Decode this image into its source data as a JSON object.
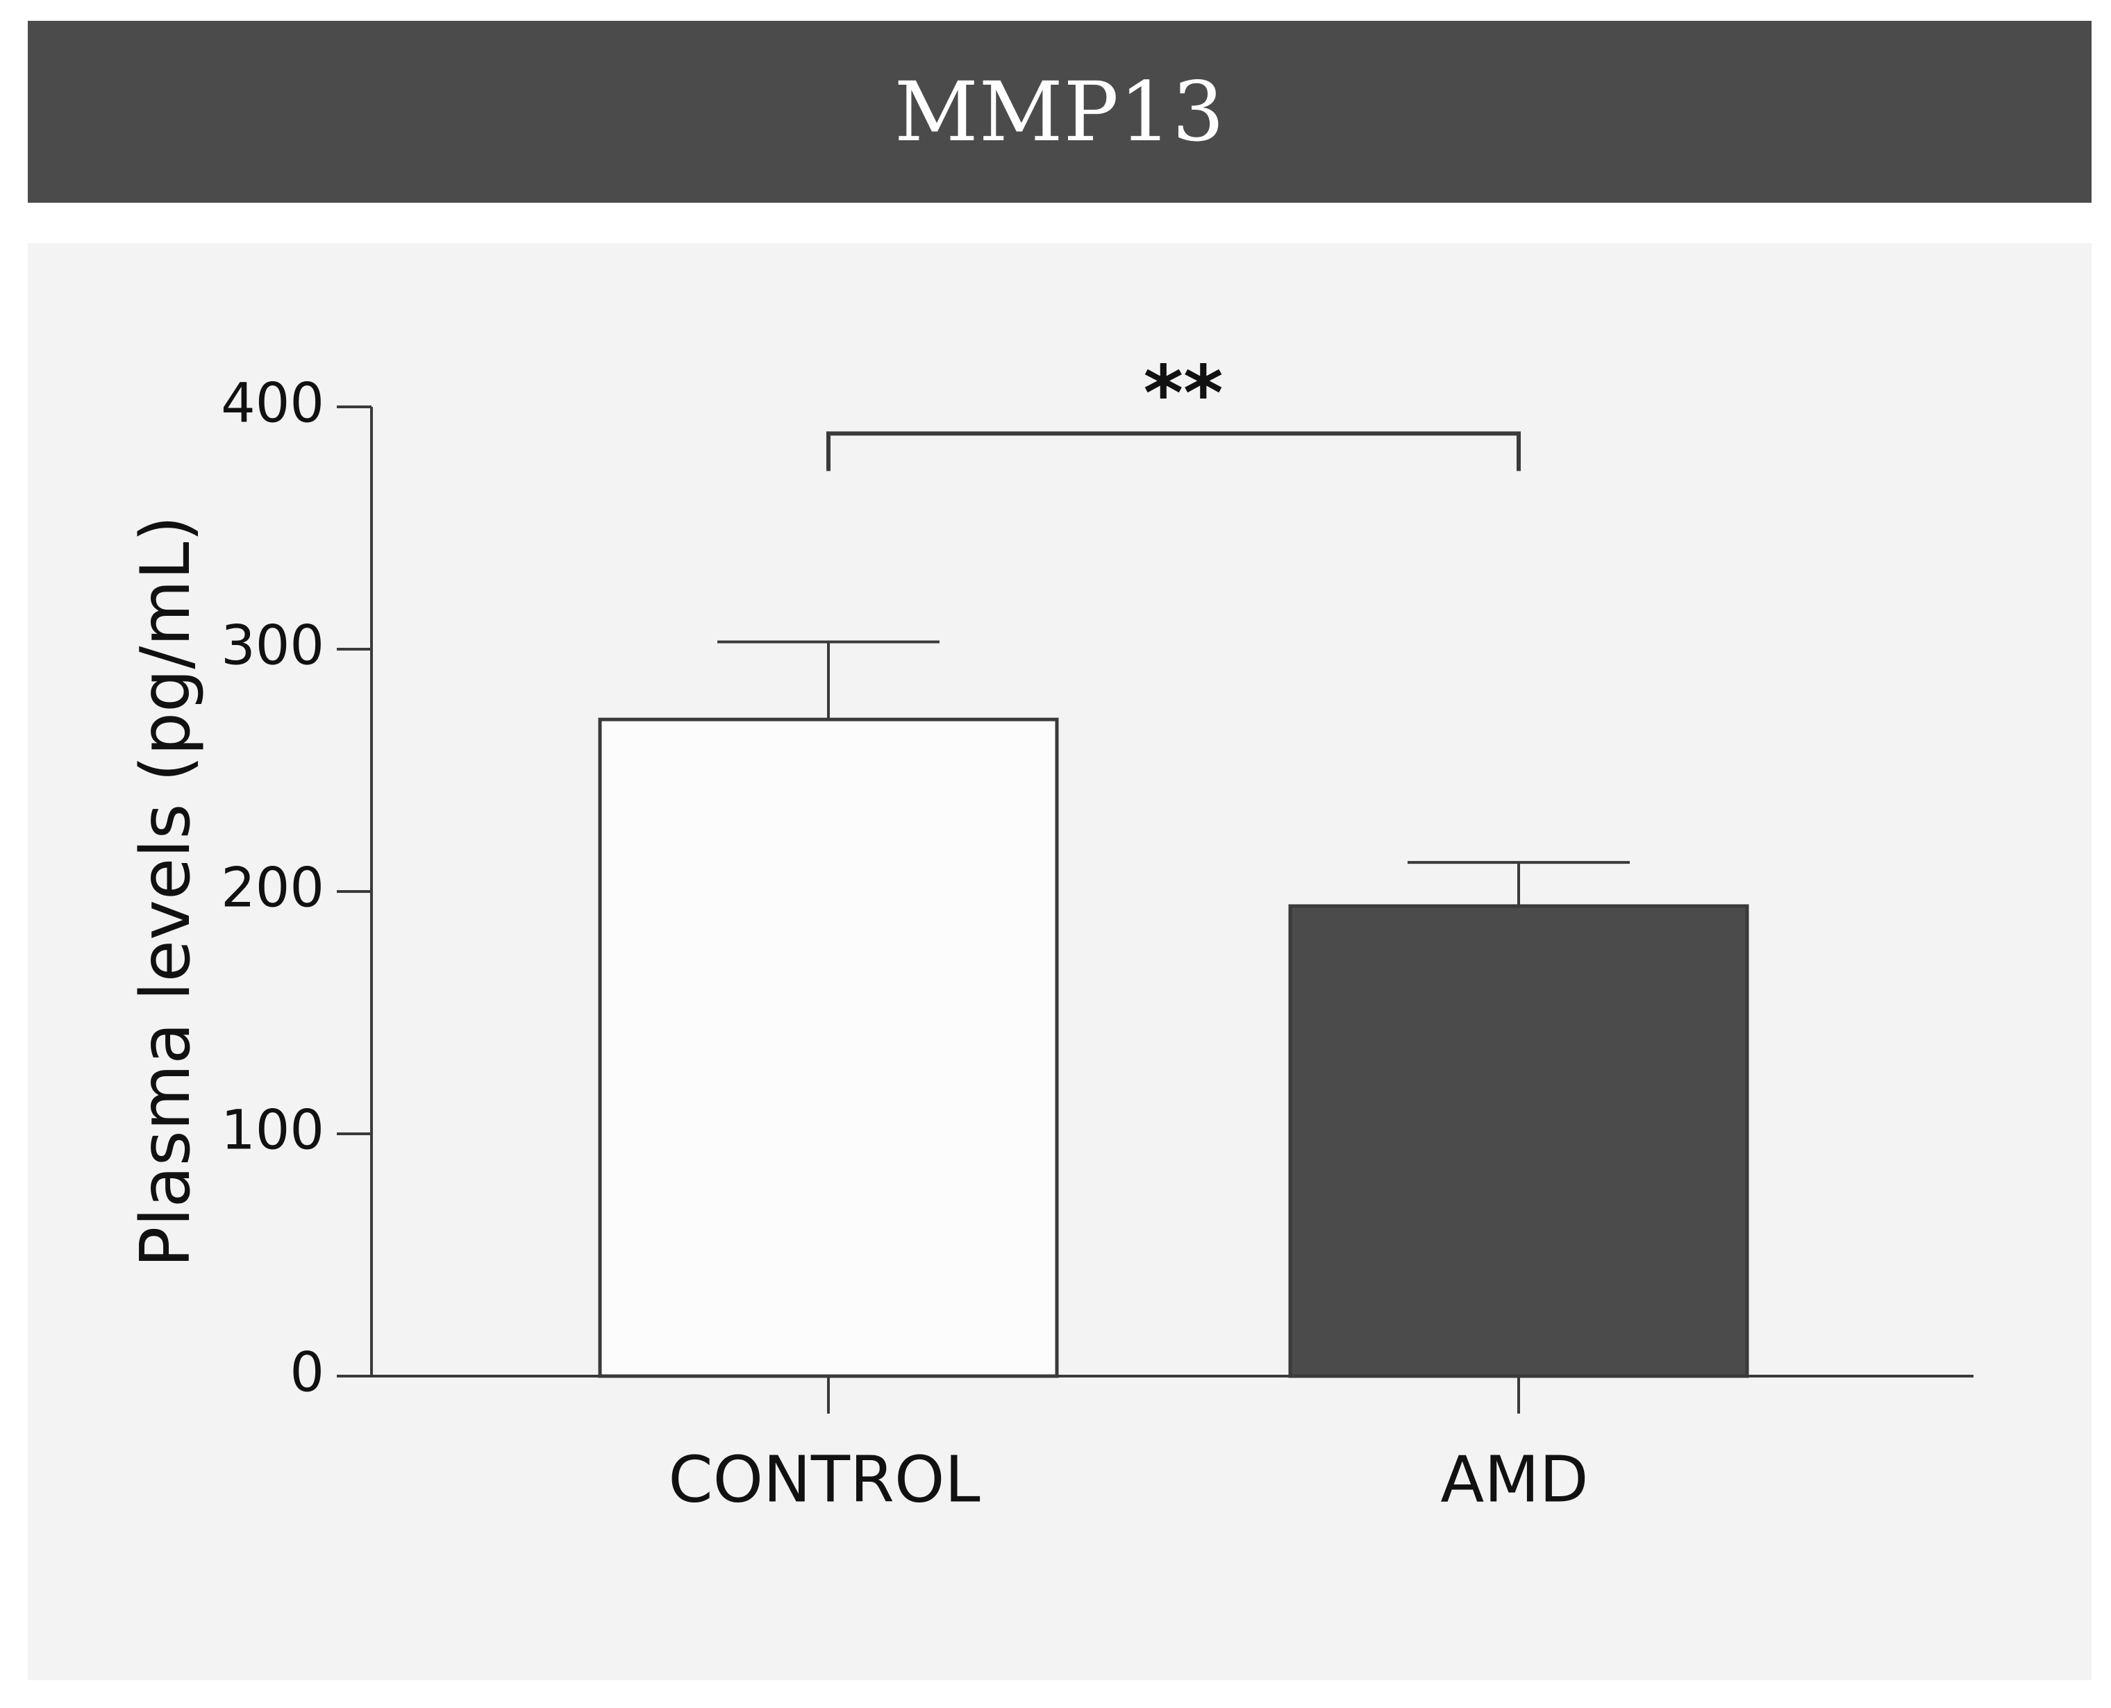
{
  "chart_data": {
    "type": "bar",
    "title": "MMP13",
    "xlabel": "",
    "ylabel": "Plasma levels (pg/mL)",
    "ylim": [
      0,
      400
    ],
    "yticks": [
      0,
      100,
      200,
      300,
      400
    ],
    "categories": [
      "CONTROL",
      "AMD"
    ],
    "values": [
      271,
      194
    ],
    "error_upper": [
      303,
      212
    ],
    "colors": [
      "#fcfcfc",
      "#4b4b4b"
    ],
    "bar_edge_color": "#3a3a3a",
    "significance": {
      "label": "**",
      "between": [
        "CONTROL",
        "AMD"
      ],
      "at_value": 389
    },
    "grid": false,
    "legend": "none"
  }
}
